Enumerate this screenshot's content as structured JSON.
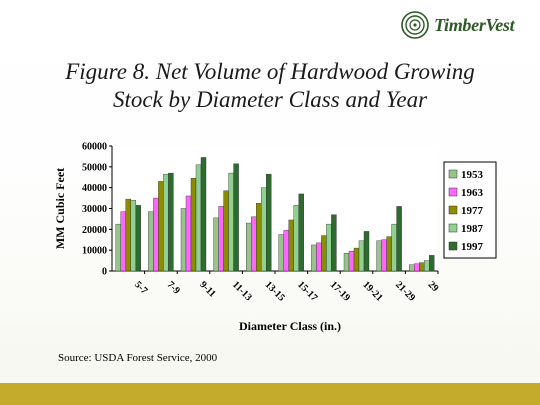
{
  "brand": {
    "name": "TimberVest",
    "icon": "tree-ring-logo-icon"
  },
  "slide": {
    "title_line1": "Figure 8.  Net Volume of Hardwood Growing",
    "title_line2": "Stock by Diameter Class and Year",
    "source": "Source: USDA Forest Service, 2000"
  },
  "colors": {
    "1953": "#98c48c",
    "1963": "#ff66ff",
    "1977": "#8c8c00",
    "1987": "#90d090",
    "1997": "#2e6b2e",
    "band": "#c4ab2c"
  },
  "chart_data": {
    "type": "bar",
    "xlabel": "Diameter Class (in.)",
    "ylabel": "MM Cubic Feet",
    "ylim": [
      0,
      60000
    ],
    "yticks": [
      "0",
      "10000",
      "20000",
      "30000",
      "40000",
      "50000",
      "60000"
    ],
    "legend_position": "right",
    "categories": [
      "5-7",
      "7-9",
      "9-11",
      "11-13",
      "13-15",
      "15-17",
      "17-19",
      "19-21",
      "21-29",
      "29"
    ],
    "series": [
      {
        "name": "1953",
        "values": [
          22500,
          28500,
          30000,
          25500,
          23000,
          17500,
          12500,
          8500,
          14500,
          3000
        ]
      },
      {
        "name": "1963",
        "values": [
          28500,
          35000,
          36000,
          31000,
          26000,
          19500,
          13500,
          9500,
          15000,
          3500
        ]
      },
      {
        "name": "1977",
        "values": [
          34500,
          43000,
          44500,
          38500,
          32500,
          24500,
          17000,
          11000,
          16500,
          4000
        ]
      },
      {
        "name": "1987",
        "values": [
          34000,
          46500,
          51000,
          47000,
          40000,
          31500,
          22500,
          14500,
          22500,
          5000
        ]
      },
      {
        "name": "1997",
        "values": [
          31500,
          47000,
          54500,
          51500,
          46500,
          37000,
          27000,
          19000,
          31000,
          7500
        ]
      }
    ]
  }
}
